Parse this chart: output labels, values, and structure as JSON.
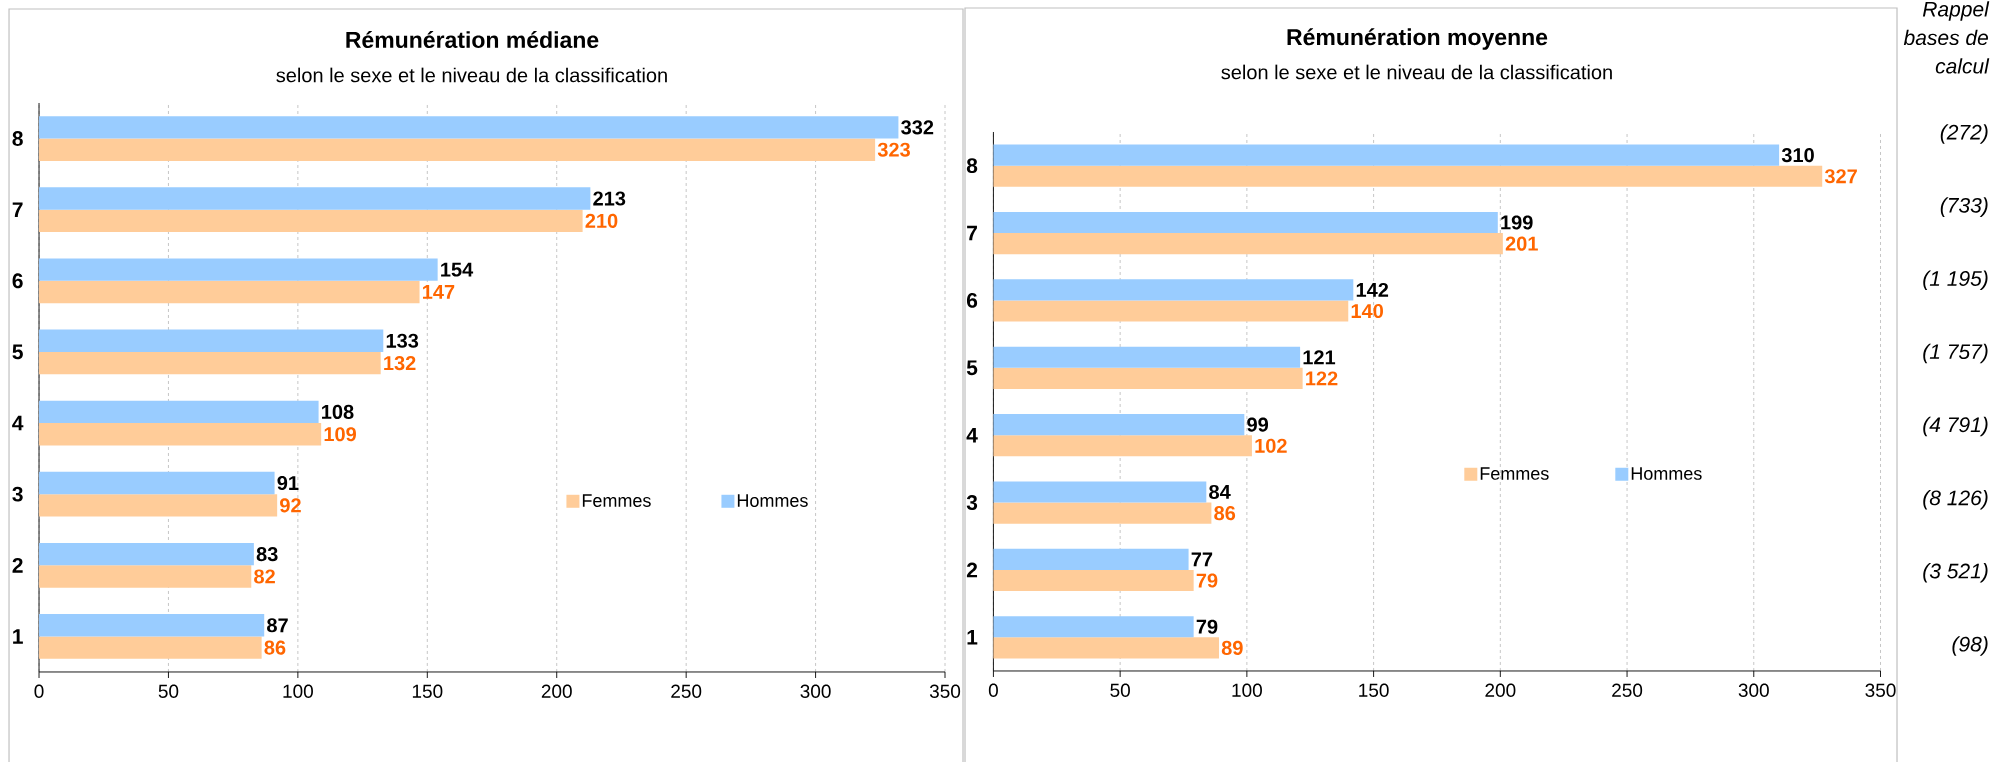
{
  "chart_data": [
    {
      "type": "bar",
      "orientation": "horizontal",
      "title": "Rémunération médiane",
      "subtitle": "selon le sexe et le niveau de la classification",
      "categories": [
        "8",
        "7",
        "6",
        "5",
        "4",
        "3",
        "2",
        "1"
      ],
      "series": [
        {
          "name": "Femmes",
          "color": "#ffcc99",
          "values": [
            323,
            210,
            147,
            132,
            109,
            92,
            82,
            86
          ]
        },
        {
          "name": "Hommes",
          "color": "#99ccff",
          "values": [
            332,
            213,
            154,
            133,
            108,
            91,
            83,
            87
          ]
        }
      ],
      "xlim": [
        0,
        350
      ],
      "xticks": [
        0,
        50,
        100,
        150,
        200,
        250,
        300,
        350
      ],
      "grid": "x",
      "legend": "right",
      "data_labels": true
    },
    {
      "type": "bar",
      "orientation": "horizontal",
      "title": "Rémunération moyenne",
      "subtitle": "selon le sexe et le niveau de la classification",
      "categories": [
        "8",
        "7",
        "6",
        "5",
        "4",
        "3",
        "2",
        "1"
      ],
      "series": [
        {
          "name": "Femmes",
          "color": "#ffcc99",
          "values": [
            327,
            201,
            140,
            122,
            102,
            86,
            79,
            89
          ]
        },
        {
          "name": "Hommes",
          "color": "#99ccff",
          "values": [
            310,
            199,
            142,
            121,
            99,
            84,
            77,
            79
          ]
        }
      ],
      "xlim": [
        0,
        350
      ],
      "xticks": [
        0,
        50,
        100,
        150,
        200,
        250,
        300,
        350
      ],
      "grid": "x",
      "legend": "right",
      "data_labels": true
    },
    {
      "type": "other",
      "title": "Rappel bases de calcul",
      "annotations": [
        "(272)",
        "(733)",
        "(1 195)",
        "(1 757)",
        "(4 791)",
        "(8 126)",
        "(3 521)",
        "(98)"
      ]
    }
  ]
}
